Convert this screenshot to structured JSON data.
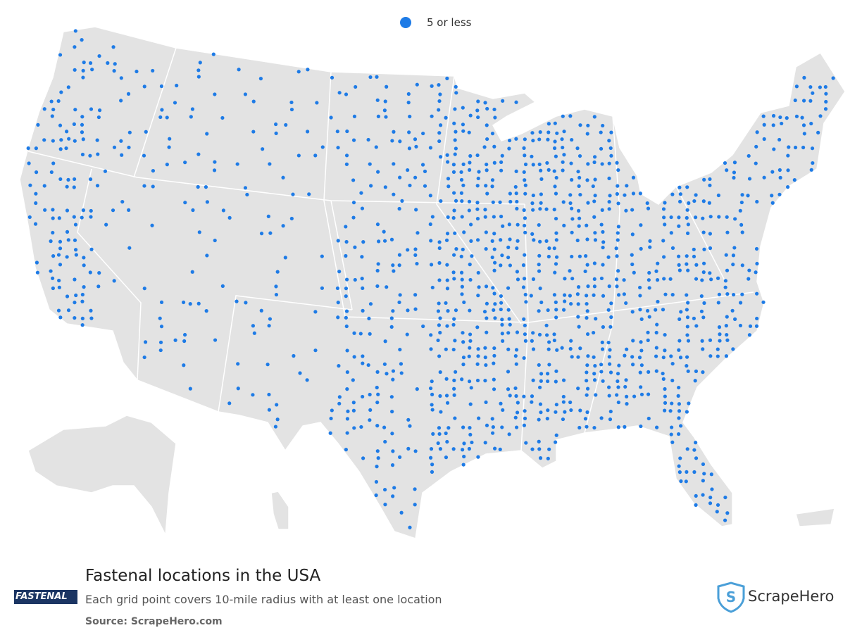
{
  "legend": {
    "label": "5 or less"
  },
  "footer": {
    "title": "Fastenal locations in the USA",
    "subtitle": "Each grid point covers 10-mile radius with at least one location",
    "source": "Source: ScrapeHero.com"
  },
  "logos": {
    "left": "FASTENAL",
    "right": "ScrapeHero"
  }
}
